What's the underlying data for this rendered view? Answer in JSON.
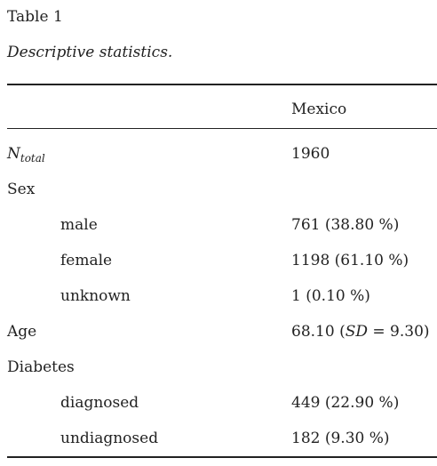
{
  "table": {
    "label": "Table 1",
    "caption": "Descriptive statistics.",
    "column_header": "Mexico",
    "rows": {
      "n_total": {
        "label_main": "N",
        "label_sub": "total",
        "value": "1960"
      },
      "sex": {
        "label": "Sex",
        "value": ""
      },
      "male": {
        "label": "male",
        "value": "761 (38.80 %)"
      },
      "female": {
        "label": "female",
        "value": "1198 (61.10 %)"
      },
      "unknown": {
        "label": "unknown",
        "value": "1 (0.10 %)"
      },
      "age": {
        "label": "Age",
        "value_prefix": "68.10 (",
        "value_sd": "SD",
        "value_suffix": " = 9.30)"
      },
      "diabetes": {
        "label": "Diabetes",
        "value": ""
      },
      "diagnosed": {
        "label": "diagnosed",
        "value": "449 (22.90 %)"
      },
      "undiagnosed": {
        "label": "undiagnosed",
        "value": "182 (9.30 %)"
      }
    }
  }
}
